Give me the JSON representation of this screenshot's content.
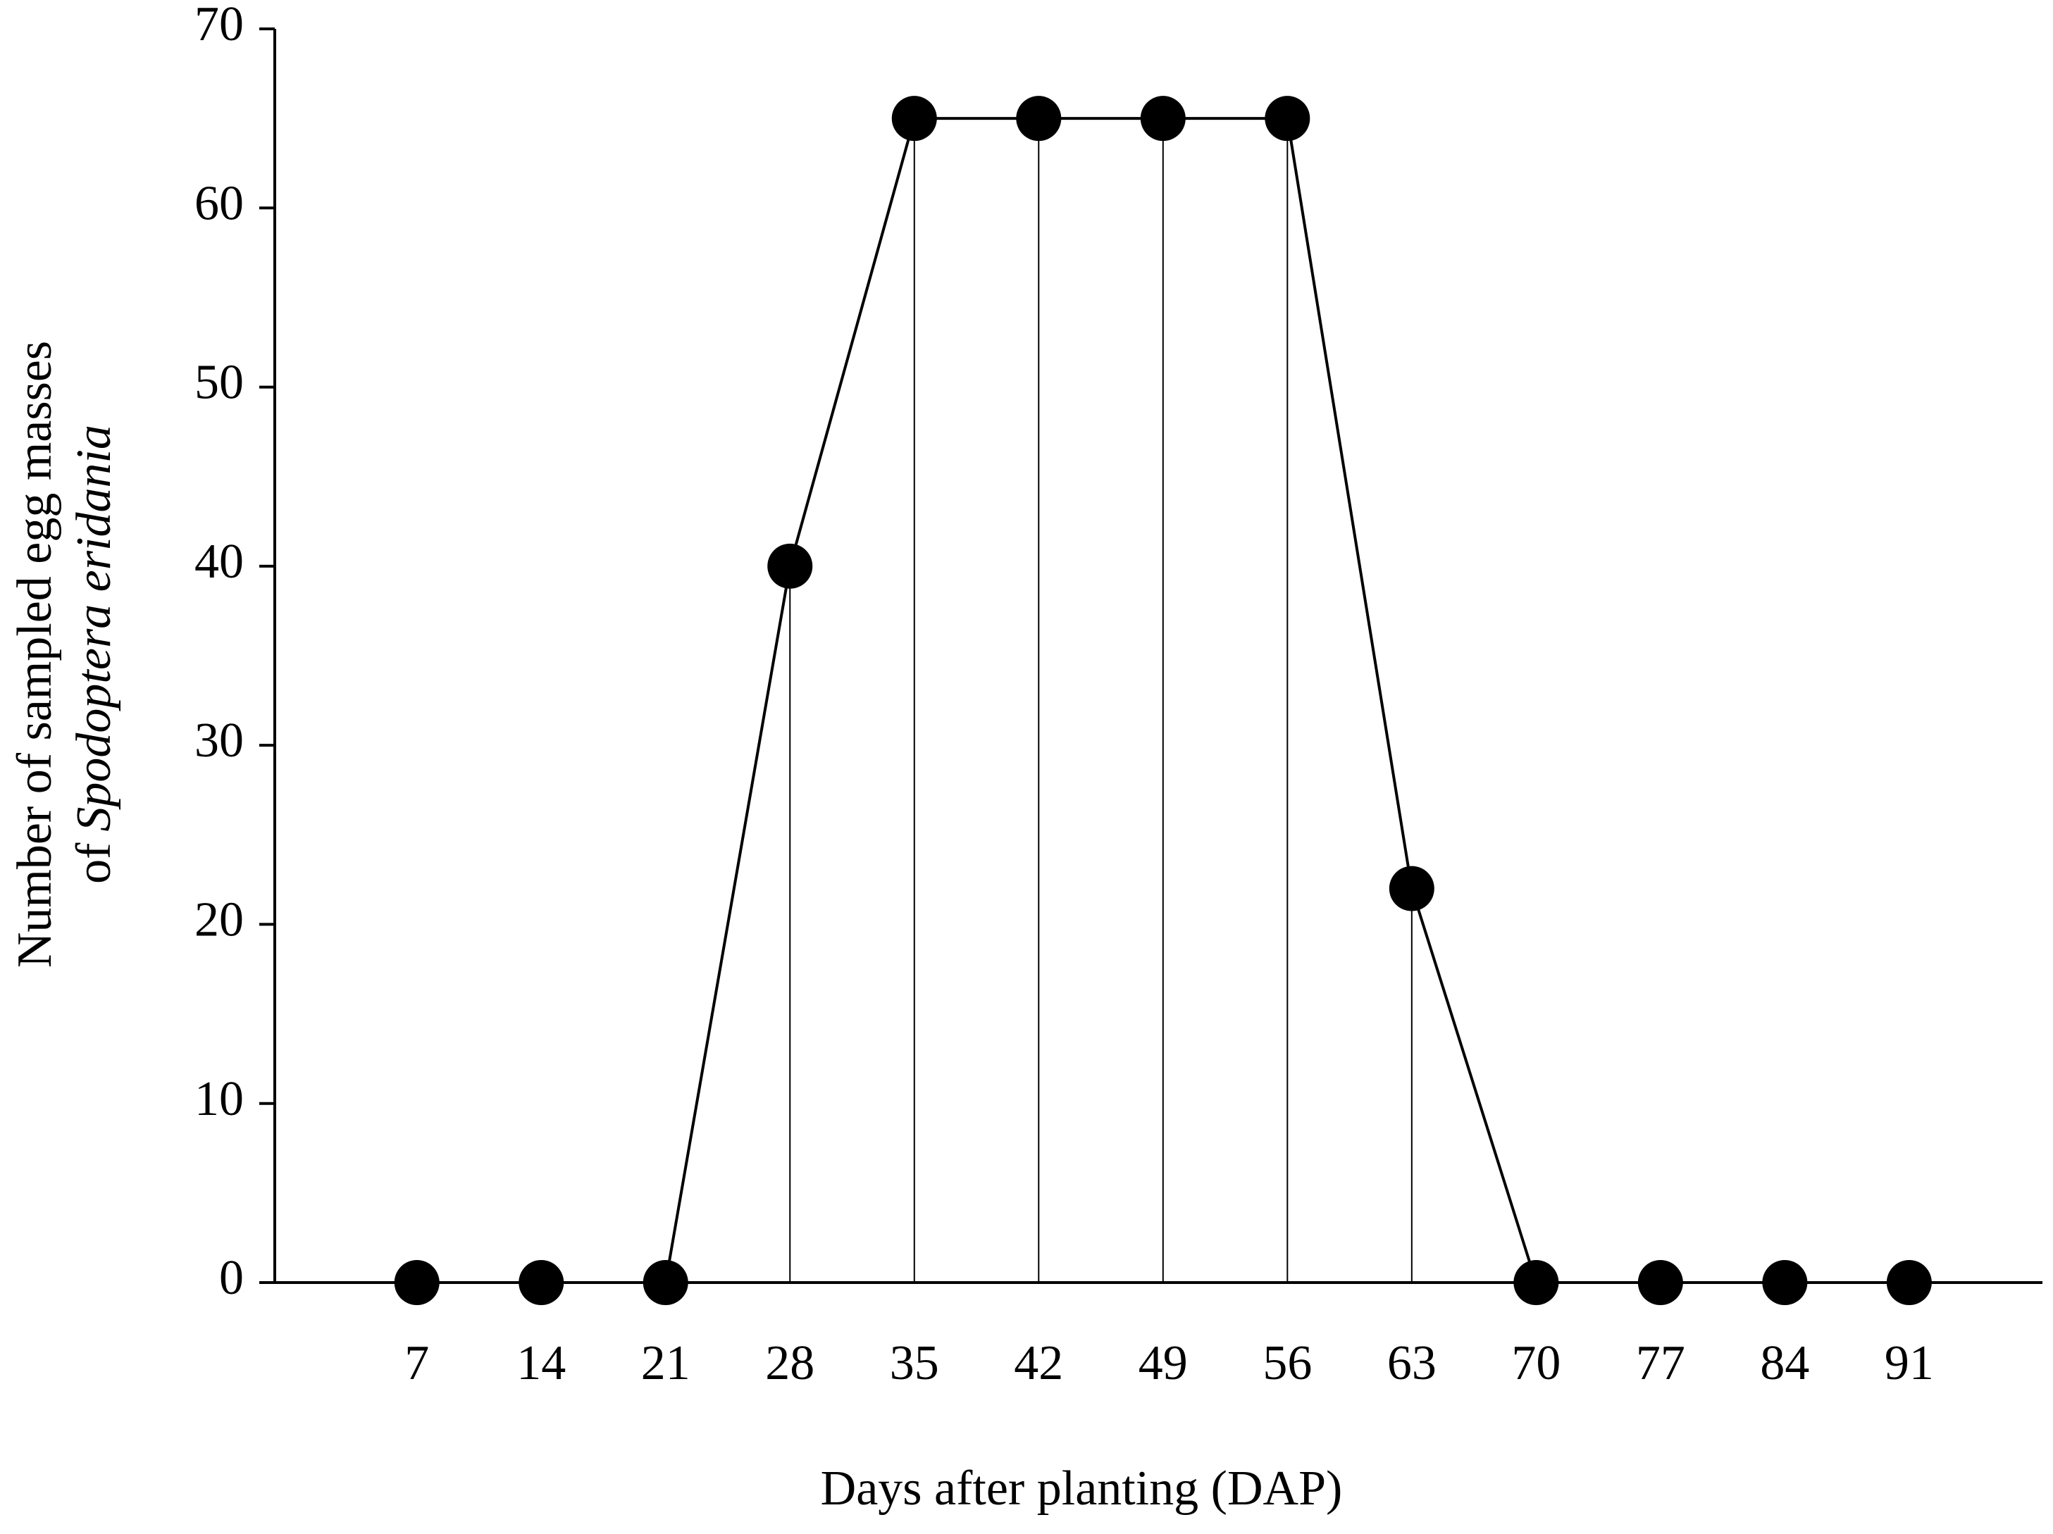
{
  "chart_data": {
    "type": "line",
    "xlabel": "Days after planting (DAP)",
    "ylabel": {
      "line1": "Number of sampled egg masses",
      "line2_prefix": "of",
      "line2_italic": "Spodoptera eridania"
    },
    "x": [
      7,
      14,
      21,
      28,
      35,
      42,
      49,
      56,
      63,
      70,
      77,
      84,
      91
    ],
    "series": [
      {
        "color": "#000000",
        "values": [
          0,
          0,
          0,
          40,
          65,
          65,
          65,
          65,
          22,
          0,
          0,
          0,
          0
        ]
      }
    ],
    "xlim": [
      -1,
      98.5
    ],
    "xticks": [
      7,
      14,
      21,
      28,
      35,
      42,
      49,
      56,
      63,
      70,
      77,
      84,
      91
    ],
    "ylim": [
      0,
      70
    ],
    "yticks": [
      0,
      10,
      20,
      30,
      40,
      50,
      60,
      70
    ],
    "drop_lines": true,
    "markers": true
  }
}
